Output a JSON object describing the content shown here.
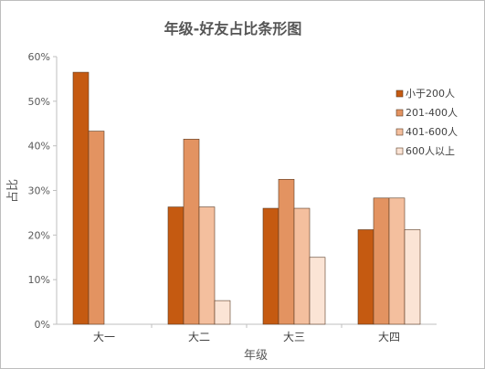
{
  "chart_data": {
    "type": "bar",
    "title": "年级-好友占比条形图",
    "xlabel": "年级",
    "ylabel": "占比",
    "categories": [
      "大一",
      "大二",
      "大三",
      "大四"
    ],
    "ylim": [
      0,
      60
    ],
    "yticks": [
      "0%",
      "10%",
      "20%",
      "30%",
      "40%",
      "50%",
      "60%"
    ],
    "grid": false,
    "legend_position": "right",
    "series": [
      {
        "name": "小于200人",
        "color": "#c55a11",
        "values": [
          56.5,
          26.3,
          26.0,
          21.2
        ]
      },
      {
        "name": "201-400人",
        "color": "#e39361",
        "values": [
          43.3,
          41.5,
          32.5,
          28.3
        ]
      },
      {
        "name": "401-600人",
        "color": "#f4bf9e",
        "values": [
          0,
          26.3,
          26.0,
          28.3
        ]
      },
      {
        "name": "600人以上",
        "color": "#fbe4d5",
        "values": [
          0,
          5.3,
          15.0,
          21.2
        ]
      }
    ]
  }
}
